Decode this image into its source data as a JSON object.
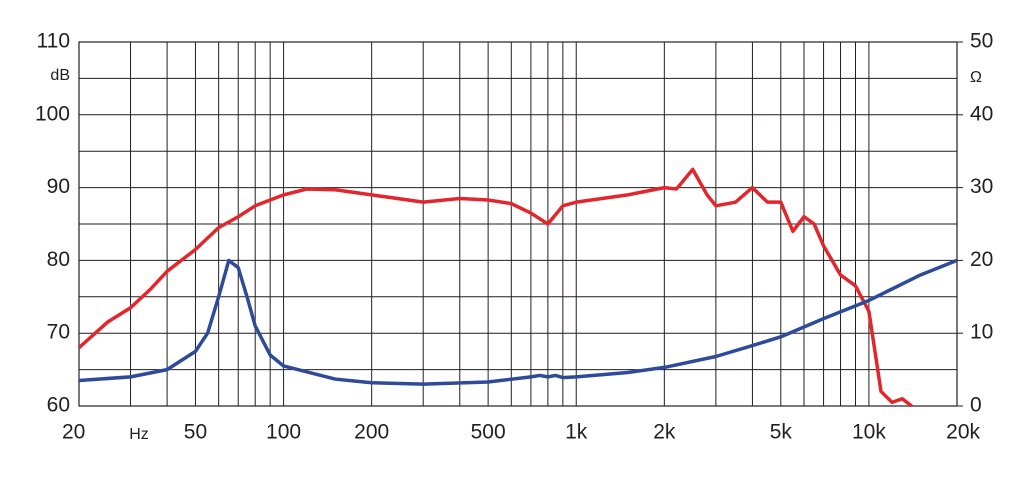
{
  "chart_data": {
    "type": "line",
    "xlog": true,
    "xlim": [
      20,
      20000
    ],
    "xticks": [
      20,
      50,
      100,
      200,
      500,
      {
        "value": 1000,
        "label": "1k"
      },
      {
        "value": 2000,
        "label": "2k"
      },
      {
        "value": 5000,
        "label": "5k"
      },
      {
        "value": 10000,
        "label": "10k"
      },
      {
        "value": 20000,
        "label": "20k"
      }
    ],
    "xminor": [
      30,
      40,
      60,
      70,
      80,
      90,
      300,
      400,
      600,
      700,
      800,
      900,
      3000,
      4000,
      6000,
      7000,
      8000,
      9000
    ],
    "x_unit": "Hz",
    "ylim": [
      60,
      110
    ],
    "yticks": [
      60,
      70,
      80,
      90,
      100,
      110
    ],
    "yminor": [
      65,
      75,
      85,
      95,
      105
    ],
    "y_unit": "dB",
    "y2lim": [
      0,
      50
    ],
    "y2ticks": [
      0,
      10,
      20,
      30,
      40,
      50
    ],
    "y2_unit": "Ω",
    "grid": true,
    "series": [
      {
        "color": "#e3262b",
        "x": [
          20,
          25,
          30,
          35,
          40,
          50,
          60,
          70,
          80,
          100,
          120,
          150,
          200,
          300,
          400,
          500,
          600,
          700,
          800,
          900,
          1000,
          1500,
          2000,
          2200,
          2500,
          2800,
          3000,
          3500,
          4000,
          4500,
          5000,
          5500,
          6000,
          6500,
          7000,
          8000,
          9000,
          10000,
          11000,
          12000,
          13000,
          14000
        ],
        "values": [
          68,
          71.5,
          73.5,
          76,
          78.5,
          81.5,
          84.5,
          86,
          87.5,
          89,
          89.8,
          89.7,
          89,
          88,
          88.5,
          88.3,
          87.8,
          86.5,
          85,
          87.5,
          88,
          89,
          90,
          89.8,
          92.5,
          89,
          87.5,
          88,
          90,
          88,
          88,
          84,
          86,
          85,
          82,
          78,
          76.5,
          73,
          62,
          60.5,
          61,
          60
        ]
      },
      {
        "color": "#2e4b9b",
        "axis": "y2",
        "x": [
          20,
          30,
          40,
          50,
          55,
          60,
          65,
          70,
          75,
          80,
          90,
          100,
          150,
          200,
          300,
          500,
          700,
          750,
          800,
          850,
          900,
          1000,
          1500,
          2000,
          3000,
          4000,
          5000,
          7000,
          10000,
          15000,
          20000
        ],
        "values": [
          3.5,
          4,
          5,
          7.5,
          10,
          15,
          20,
          19,
          15,
          11,
          7,
          5.5,
          3.7,
          3.2,
          3,
          3.3,
          4,
          4.2,
          4,
          4.2,
          3.9,
          4,
          4.6,
          5.3,
          6.8,
          8.3,
          9.5,
          12,
          14.5,
          18,
          20
        ]
      }
    ]
  }
}
